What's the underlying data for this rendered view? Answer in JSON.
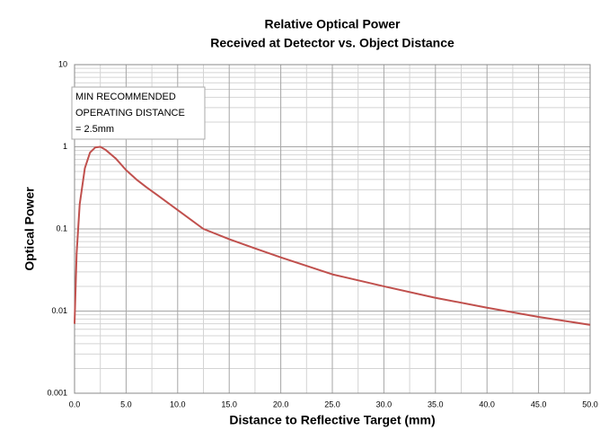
{
  "chart_data": {
    "type": "line",
    "title": "Relative Optical Power",
    "subtitle": "Received at Detector vs. Object Distance",
    "x_label": "Distance to Reflective Target (mm)",
    "y_label": "Optical Power",
    "annotation": [
      "MIN RECOMMENDED",
      "OPERATING DISTANCE",
      "= 2.5mm"
    ],
    "x": [
      0,
      0.2,
      0.5,
      1.0,
      1.5,
      2.0,
      2.5,
      3.0,
      4.0,
      5.0,
      6.0,
      7.0,
      8.0,
      10.0,
      12.5,
      15.0,
      17.5,
      20.0,
      25.0,
      30.0,
      35.0,
      40.0,
      45.0,
      50.0
    ],
    "values": [
      0.007,
      0.05,
      0.2,
      0.55,
      0.85,
      0.98,
      1.0,
      0.92,
      0.72,
      0.52,
      0.4,
      0.32,
      0.26,
      0.17,
      0.1,
      0.075,
      0.058,
      0.045,
      0.028,
      0.02,
      0.0145,
      0.011,
      0.0085,
      0.0068
    ],
    "color": "#c0504d",
    "xlim": [
      0,
      50
    ],
    "xticks": [
      {
        "value": 0,
        "label": "0.0"
      },
      {
        "value": 5,
        "label": "5.0"
      },
      {
        "value": 10,
        "label": "10.0"
      },
      {
        "value": 15,
        "label": "15.0"
      },
      {
        "value": 20,
        "label": "20.0"
      },
      {
        "value": 25,
        "label": "25.0"
      },
      {
        "value": 30,
        "label": "30.0"
      },
      {
        "value": 35,
        "label": "35.0"
      },
      {
        "value": 40,
        "label": "40.0"
      },
      {
        "value": 45,
        "label": "45.0"
      },
      {
        "value": 50,
        "label": "50.0"
      }
    ],
    "ylim": [
      0.001,
      10
    ],
    "yticks": [
      0.001,
      0.01,
      0.1,
      1,
      10
    ],
    "log_y": true,
    "grid": true
  }
}
